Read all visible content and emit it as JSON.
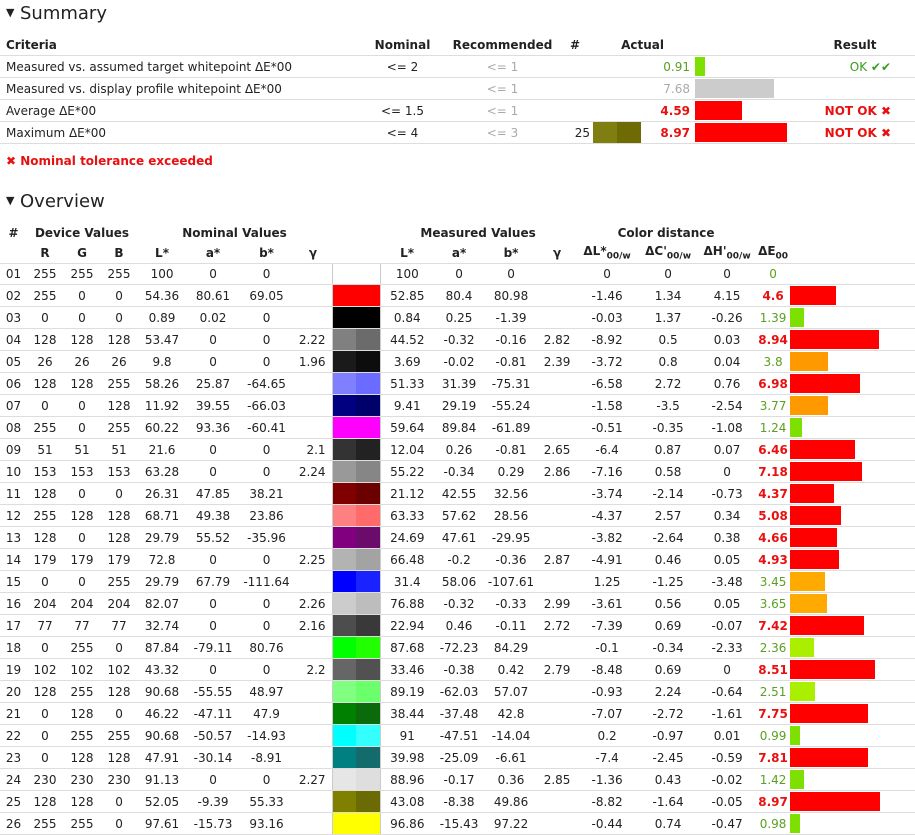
{
  "summary": {
    "title": "Summary",
    "headers": {
      "criteria": "Criteria",
      "nominal": "Nominal",
      "recommended": "Recommended",
      "count": "#",
      "actual": "Actual",
      "result": "Result"
    },
    "rows": [
      {
        "criteria": "Measured vs. assumed target whitepoint ΔE*00",
        "nominal": "<= 2",
        "recommended": "<= 1",
        "count": "",
        "actual": "0.91",
        "actual_color": "green",
        "bar_value": 0.91,
        "bar_color": "#7ee000",
        "result": "OK ✔✔",
        "result_status": "ok",
        "swatches": []
      },
      {
        "criteria": "Measured vs. display profile whitepoint ΔE*00",
        "nominal": "",
        "recommended": "<= 1",
        "count": "",
        "actual": "7.68",
        "actual_color": "grey",
        "bar_value": 7.68,
        "bar_color": "#cccccc",
        "result": "",
        "result_status": "",
        "swatches": []
      },
      {
        "criteria": "Average ΔE*00",
        "nominal": "<= 1.5",
        "recommended": "<= 1",
        "count": "",
        "actual": "4.59",
        "actual_color": "red",
        "bar_value": 4.59,
        "bar_color": "#ff0000",
        "result": "NOT OK ✖",
        "result_status": "bad",
        "swatches": []
      },
      {
        "criteria": "Maximum ΔE*00",
        "nominal": "<= 4",
        "recommended": "<= 3",
        "count": "25",
        "actual": "8.97",
        "actual_color": "red",
        "bar_value": 8.97,
        "bar_color": "#ff0000",
        "result": "NOT OK ✖",
        "result_status": "bad",
        "swatches": [
          "#7f7f11",
          "#6e6a04"
        ]
      }
    ],
    "tolerance_message": "✖ Nominal tolerance exceeded"
  },
  "overview": {
    "title": "Overview",
    "group_headers": {
      "num": "#",
      "device": "Device Values",
      "nominal": "Nominal Values",
      "measured": "Measured Values",
      "distance": "Color distance"
    },
    "col_headers": {
      "R": "R",
      "G": "G",
      "B": "B",
      "L": "L*",
      "a": "a*",
      "b": "b*",
      "gamma": "γ",
      "mL": "L*",
      "ma": "a*",
      "mb": "b*",
      "mgamma": "γ",
      "dL": "ΔL*",
      "dC": "ΔC'",
      "dH": "ΔH'",
      "sub": "00/w",
      "dE": "ΔE",
      "dEsub": "00"
    },
    "rows": [
      {
        "n": "01",
        "R": "255",
        "G": "255",
        "B": "255",
        "L": "100",
        "a": "0",
        "b": "0",
        "g": "",
        "mL": "100",
        "ma": "0",
        "mb": "0",
        "mg": "",
        "dL": "0",
        "dC": "0",
        "dH": "0",
        "dE": "0",
        "dEc": "green",
        "nom": "#ffffff",
        "mea": "#ffffff",
        "bar": 0,
        "barc": "#7ee000"
      },
      {
        "n": "02",
        "R": "255",
        "G": "0",
        "B": "0",
        "L": "54.36",
        "a": "80.61",
        "b": "69.05",
        "g": "",
        "mL": "52.85",
        "ma": "80.4",
        "mb": "80.98",
        "mg": "",
        "dL": "-1.46",
        "dC": "1.34",
        "dH": "4.15",
        "dE": "4.6",
        "dEc": "red",
        "nom": "#ff0000",
        "mea": "#ff0000",
        "bar": 4.6,
        "barc": "#ff0000"
      },
      {
        "n": "03",
        "R": "0",
        "G": "0",
        "B": "0",
        "L": "0.89",
        "a": "0.02",
        "b": "0",
        "g": "",
        "mL": "0.84",
        "ma": "0.25",
        "mb": "-1.39",
        "mg": "",
        "dL": "-0.03",
        "dC": "1.37",
        "dH": "-0.26",
        "dE": "1.39",
        "dEc": "green",
        "nom": "#000000",
        "mea": "#000000",
        "bar": 1.39,
        "barc": "#7ee000"
      },
      {
        "n": "04",
        "R": "128",
        "G": "128",
        "B": "128",
        "L": "53.47",
        "a": "0",
        "b": "0",
        "g": "2.22",
        "mL": "44.52",
        "ma": "-0.32",
        "mb": "-0.16",
        "mg": "2.82",
        "dL": "-8.92",
        "dC": "0.5",
        "dH": "0.03",
        "dE": "8.94",
        "dEc": "red",
        "nom": "#808080",
        "mea": "#6b6b6b",
        "bar": 8.94,
        "barc": "#ff0000"
      },
      {
        "n": "05",
        "R": "26",
        "G": "26",
        "B": "26",
        "L": "9.8",
        "a": "0",
        "b": "0",
        "g": "1.96",
        "mL": "3.69",
        "ma": "-0.02",
        "mb": "-0.81",
        "mg": "2.39",
        "dL": "-3.72",
        "dC": "0.8",
        "dH": "0.04",
        "dE": "3.8",
        "dEc": "green",
        "nom": "#1a1a1a",
        "mea": "#0d0d0d",
        "bar": 3.8,
        "barc": "#ff9900"
      },
      {
        "n": "06",
        "R": "128",
        "G": "128",
        "B": "255",
        "L": "58.26",
        "a": "25.87",
        "b": "-64.65",
        "g": "",
        "mL": "51.33",
        "ma": "31.39",
        "mb": "-75.31",
        "mg": "",
        "dL": "-6.58",
        "dC": "2.72",
        "dH": "0.76",
        "dE": "6.98",
        "dEc": "red",
        "nom": "#8080ff",
        "mea": "#6b6bff",
        "bar": 6.98,
        "barc": "#ff0000"
      },
      {
        "n": "07",
        "R": "0",
        "G": "0",
        "B": "128",
        "L": "11.92",
        "a": "39.55",
        "b": "-66.03",
        "g": "",
        "mL": "9.41",
        "ma": "29.19",
        "mb": "-55.24",
        "mg": "",
        "dL": "-1.58",
        "dC": "-3.5",
        "dH": "-2.54",
        "dE": "3.77",
        "dEc": "green",
        "nom": "#000080",
        "mea": "#00006b",
        "bar": 3.77,
        "barc": "#ff9900"
      },
      {
        "n": "08",
        "R": "255",
        "G": "0",
        "B": "255",
        "L": "60.22",
        "a": "93.36",
        "b": "-60.41",
        "g": "",
        "mL": "59.64",
        "ma": "89.84",
        "mb": "-61.89",
        "mg": "",
        "dL": "-0.51",
        "dC": "-0.35",
        "dH": "-1.08",
        "dE": "1.24",
        "dEc": "green",
        "nom": "#ff00ff",
        "mea": "#ff00ff",
        "bar": 1.24,
        "barc": "#7ee000"
      },
      {
        "n": "09",
        "R": "51",
        "G": "51",
        "B": "51",
        "L": "21.6",
        "a": "0",
        "b": "0",
        "g": "2.1",
        "mL": "12.04",
        "ma": "0.26",
        "mb": "-0.81",
        "mg": "2.65",
        "dL": "-6.4",
        "dC": "0.87",
        "dH": "0.07",
        "dE": "6.46",
        "dEc": "red",
        "nom": "#333333",
        "mea": "#222222",
        "bar": 6.46,
        "barc": "#ff0000"
      },
      {
        "n": "10",
        "R": "153",
        "G": "153",
        "B": "153",
        "L": "63.28",
        "a": "0",
        "b": "0",
        "g": "2.24",
        "mL": "55.22",
        "ma": "-0.34",
        "mb": "0.29",
        "mg": "2.86",
        "dL": "-7.16",
        "dC": "0.58",
        "dH": "0",
        "dE": "7.18",
        "dEc": "red",
        "nom": "#999999",
        "mea": "#868686",
        "bar": 7.18,
        "barc": "#ff0000"
      },
      {
        "n": "11",
        "R": "128",
        "G": "0",
        "B": "0",
        "L": "26.31",
        "a": "47.85",
        "b": "38.21",
        "g": "",
        "mL": "21.12",
        "ma": "42.55",
        "mb": "32.56",
        "mg": "",
        "dL": "-3.74",
        "dC": "-2.14",
        "dH": "-0.73",
        "dE": "4.37",
        "dEc": "red",
        "nom": "#800000",
        "mea": "#6b0000",
        "bar": 4.37,
        "barc": "#ff0000"
      },
      {
        "n": "12",
        "R": "255",
        "G": "128",
        "B": "128",
        "L": "68.71",
        "a": "49.38",
        "b": "23.86",
        "g": "",
        "mL": "63.33",
        "ma": "57.62",
        "mb": "28.56",
        "mg": "",
        "dL": "-4.37",
        "dC": "2.57",
        "dH": "0.34",
        "dE": "5.08",
        "dEc": "red",
        "nom": "#ff8080",
        "mea": "#ff6b6b",
        "bar": 5.08,
        "barc": "#ff0000"
      },
      {
        "n": "13",
        "R": "128",
        "G": "0",
        "B": "128",
        "L": "29.79",
        "a": "55.52",
        "b": "-35.96",
        "g": "",
        "mL": "24.69",
        "ma": "47.61",
        "mb": "-29.95",
        "mg": "",
        "dL": "-3.82",
        "dC": "-2.64",
        "dH": "0.38",
        "dE": "4.66",
        "dEc": "red",
        "nom": "#800080",
        "mea": "#6b0b6b",
        "bar": 4.66,
        "barc": "#ff0000"
      },
      {
        "n": "14",
        "R": "179",
        "G": "179",
        "B": "179",
        "L": "72.8",
        "a": "0",
        "b": "0",
        "g": "2.25",
        "mL": "66.48",
        "ma": "-0.2",
        "mb": "-0.36",
        "mg": "2.87",
        "dL": "-4.91",
        "dC": "0.46",
        "dH": "0.05",
        "dE": "4.93",
        "dEc": "red",
        "nom": "#b3b3b3",
        "mea": "#a3a3a3",
        "bar": 4.93,
        "barc": "#ff0000"
      },
      {
        "n": "15",
        "R": "0",
        "G": "0",
        "B": "255",
        "L": "29.79",
        "a": "67.79",
        "b": "-111.64",
        "g": "",
        "mL": "31.4",
        "ma": "58.06",
        "mb": "-107.61",
        "mg": "",
        "dL": "1.25",
        "dC": "-1.25",
        "dH": "-3.48",
        "dE": "3.45",
        "dEc": "green",
        "nom": "#0000ff",
        "mea": "#1a22ff",
        "bar": 3.45,
        "barc": "#ffaa00"
      },
      {
        "n": "16",
        "R": "204",
        "G": "204",
        "B": "204",
        "L": "82.07",
        "a": "0",
        "b": "0",
        "g": "2.26",
        "mL": "76.88",
        "ma": "-0.32",
        "mb": "-0.33",
        "mg": "2.99",
        "dL": "-3.61",
        "dC": "0.56",
        "dH": "0.05",
        "dE": "3.65",
        "dEc": "green",
        "nom": "#cccccc",
        "mea": "#bdbdbd",
        "bar": 3.65,
        "barc": "#ffaa00"
      },
      {
        "n": "17",
        "R": "77",
        "G": "77",
        "B": "77",
        "L": "32.74",
        "a": "0",
        "b": "0",
        "g": "2.16",
        "mL": "22.94",
        "ma": "0.46",
        "mb": "-0.11",
        "mg": "2.72",
        "dL": "-7.39",
        "dC": "0.69",
        "dH": "-0.07",
        "dE": "7.42",
        "dEc": "red",
        "nom": "#4d4d4d",
        "mea": "#393939",
        "bar": 7.42,
        "barc": "#ff0000"
      },
      {
        "n": "18",
        "R": "0",
        "G": "255",
        "B": "0",
        "L": "87.84",
        "a": "-79.11",
        "b": "80.76",
        "g": "",
        "mL": "87.68",
        "ma": "-72.23",
        "mb": "84.29",
        "mg": "",
        "dL": "-0.1",
        "dC": "-0.34",
        "dH": "-2.33",
        "dE": "2.36",
        "dEc": "green",
        "nom": "#00ff00",
        "mea": "#22ff00",
        "bar": 2.36,
        "barc": "#aaee00"
      },
      {
        "n": "19",
        "R": "102",
        "G": "102",
        "B": "102",
        "L": "43.32",
        "a": "0",
        "b": "0",
        "g": "2.2",
        "mL": "33.46",
        "ma": "-0.38",
        "mb": "0.42",
        "mg": "2.79",
        "dL": "-8.48",
        "dC": "0.69",
        "dH": "0",
        "dE": "8.51",
        "dEc": "red",
        "nom": "#666666",
        "mea": "#515151",
        "bar": 8.51,
        "barc": "#ff0000"
      },
      {
        "n": "20",
        "R": "128",
        "G": "255",
        "B": "128",
        "L": "90.68",
        "a": "-55.55",
        "b": "48.97",
        "g": "",
        "mL": "89.19",
        "ma": "-62.03",
        "mb": "57.07",
        "mg": "",
        "dL": "-0.93",
        "dC": "2.24",
        "dH": "-0.64",
        "dE": "2.51",
        "dEc": "green",
        "nom": "#80ff80",
        "mea": "#6bff6b",
        "bar": 2.51,
        "barc": "#aaee00"
      },
      {
        "n": "21",
        "R": "0",
        "G": "128",
        "B": "0",
        "L": "46.22",
        "a": "-47.11",
        "b": "47.9",
        "g": "",
        "mL": "38.44",
        "ma": "-37.48",
        "mb": "42.8",
        "mg": "",
        "dL": "-7.07",
        "dC": "-2.72",
        "dH": "-1.61",
        "dE": "7.75",
        "dEc": "red",
        "nom": "#008000",
        "mea": "#0b6b0b",
        "bar": 7.75,
        "barc": "#ff0000"
      },
      {
        "n": "22",
        "R": "0",
        "G": "255",
        "B": "255",
        "L": "90.68",
        "a": "-50.57",
        "b": "-14.93",
        "g": "",
        "mL": "91",
        "ma": "-47.51",
        "mb": "-14.04",
        "mg": "",
        "dL": "0.2",
        "dC": "-0.97",
        "dH": "0.01",
        "dE": "0.99",
        "dEc": "green",
        "nom": "#00ffff",
        "mea": "#33ffff",
        "bar": 0.99,
        "barc": "#7ee000"
      },
      {
        "n": "23",
        "R": "0",
        "G": "128",
        "B": "128",
        "L": "47.91",
        "a": "-30.14",
        "b": "-8.91",
        "g": "",
        "mL": "39.98",
        "ma": "-25.09",
        "mb": "-6.61",
        "mg": "",
        "dL": "-7.4",
        "dC": "-2.45",
        "dH": "-0.59",
        "dE": "7.81",
        "dEc": "red",
        "nom": "#008080",
        "mea": "#136b6b",
        "bar": 7.81,
        "barc": "#ff0000"
      },
      {
        "n": "24",
        "R": "230",
        "G": "230",
        "B": "230",
        "L": "91.13",
        "a": "0",
        "b": "0",
        "g": "2.27",
        "mL": "88.96",
        "ma": "-0.17",
        "mb": "0.36",
        "mg": "2.85",
        "dL": "-1.36",
        "dC": "0.43",
        "dH": "-0.02",
        "dE": "1.42",
        "dEc": "green",
        "nom": "#e6e6e6",
        "mea": "#dedede",
        "bar": 1.42,
        "barc": "#7ee000"
      },
      {
        "n": "25",
        "R": "128",
        "G": "128",
        "B": "0",
        "L": "52.05",
        "a": "-9.39",
        "b": "55.33",
        "g": "",
        "mL": "43.08",
        "ma": "-8.38",
        "mb": "49.86",
        "mg": "",
        "dL": "-8.82",
        "dC": "-1.64",
        "dH": "-0.05",
        "dE": "8.97",
        "dEc": "red",
        "nom": "#808000",
        "mea": "#6b6b05",
        "bar": 8.97,
        "barc": "#ff0000"
      },
      {
        "n": "26",
        "R": "255",
        "G": "255",
        "B": "0",
        "L": "97.61",
        "a": "-15.73",
        "b": "93.16",
        "g": "",
        "mL": "96.86",
        "ma": "-15.43",
        "mb": "97.22",
        "mg": "",
        "dL": "-0.44",
        "dC": "0.74",
        "dH": "-0.47",
        "dE": "0.98",
        "dEc": "green",
        "nom": "#ffff00",
        "mea": "#ffff00",
        "bar": 0.98,
        "barc": "#7ee000"
      }
    ]
  }
}
